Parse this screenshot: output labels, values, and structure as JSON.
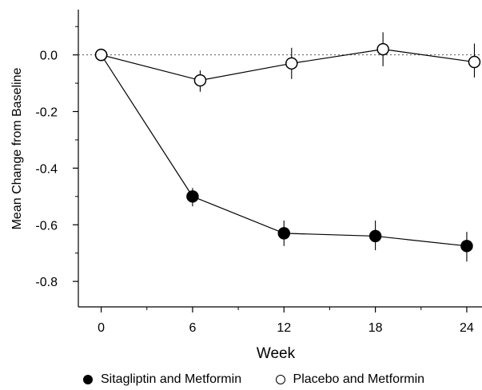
{
  "chart_data": {
    "type": "line",
    "title": "",
    "xlabel": "Week",
    "ylabel": "Mean Change from Baseline",
    "xlim": [
      -1.5,
      25
    ],
    "ylim": [
      -0.89,
      0.16
    ],
    "xticks": [
      0,
      6,
      12,
      18,
      24
    ],
    "xtick_labels": [
      "0",
      "6",
      "12",
      "18",
      "24"
    ],
    "yticks": [
      0.0,
      -0.2,
      -0.4,
      -0.6,
      -0.8
    ],
    "ytick_labels": [
      "0.0",
      "-0.2",
      "-0.4",
      "-0.6",
      "-0.8"
    ],
    "y_minor_ticks": [
      0.1,
      -0.1,
      -0.3,
      -0.5,
      -0.7
    ],
    "x_minor_ticks": [
      3,
      9,
      15,
      21
    ],
    "reference_line": 0.0,
    "grid": false,
    "legend_position": "bottom",
    "series": [
      {
        "name": "Sitagliptin and Metformin",
        "marker": "filled-circle",
        "color": "#000000",
        "x": [
          0,
          6,
          12,
          18,
          24
        ],
        "y": [
          0.0,
          -0.5,
          -0.63,
          -0.64,
          -0.675
        ],
        "err_low": [
          null,
          -0.535,
          -0.675,
          -0.69,
          -0.73
        ],
        "err_high": [
          null,
          -0.47,
          -0.585,
          -0.585,
          -0.625
        ]
      },
      {
        "name": "Placebo and Metformin",
        "marker": "open-circle",
        "color": "#000000",
        "x": [
          0,
          6.5,
          12.5,
          18.5,
          24.5
        ],
        "y": [
          0.0,
          -0.09,
          -0.03,
          0.02,
          -0.025
        ],
        "err_low": [
          null,
          -0.13,
          -0.085,
          -0.04,
          -0.08
        ],
        "err_high": [
          null,
          -0.055,
          0.025,
          0.08,
          0.04
        ]
      }
    ]
  },
  "legend": {
    "items": [
      {
        "label": "Sitagliptin and Metformin",
        "marker": "filled-circle"
      },
      {
        "label": "Placebo and Metformin",
        "marker": "open-circle"
      }
    ]
  }
}
